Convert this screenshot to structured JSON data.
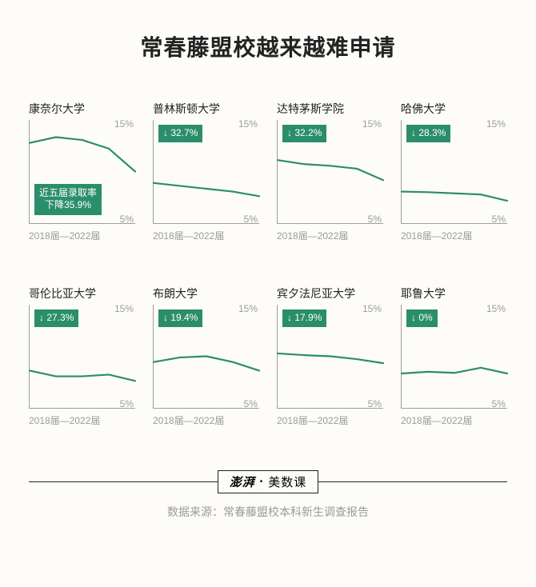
{
  "title": "常春藤盟校越来越难申请",
  "y_axis": {
    "top_label": "15%",
    "bottom_label": "5%",
    "min": 0,
    "max": 18
  },
  "x_axis_label": "2018届—2022届",
  "line_color": "#2b8e6b",
  "badge_bg": "#2b8e6b",
  "badge_fg": "#ffffff",
  "background": "#fdfcf9",
  "axis_color": "#9f9f99",
  "label_color": "#9b9b94",
  "charts": [
    {
      "name": "康奈尔大学",
      "badge_lines": [
        "近五届录取率",
        "下降35.9%"
      ],
      "badge_pos": "bottom",
      "values": [
        14.0,
        15.0,
        14.5,
        13.0,
        9.0
      ]
    },
    {
      "name": "普林斯顿大学",
      "badge_lines": [
        "↓ 32.7%"
      ],
      "badge_pos": "top",
      "values": [
        7.0,
        6.5,
        6.0,
        5.5,
        4.7
      ]
    },
    {
      "name": "达特茅斯学院",
      "badge_lines": [
        "↓ 32.2%"
      ],
      "badge_pos": "top",
      "values": [
        11.0,
        10.3,
        10.0,
        9.5,
        7.5
      ]
    },
    {
      "name": "哈佛大学",
      "badge_lines": [
        "↓ 28.3%"
      ],
      "badge_pos": "top",
      "values": [
        5.5,
        5.4,
        5.2,
        5.0,
        3.9
      ]
    },
    {
      "name": "哥伦比亚大学",
      "badge_lines": [
        "↓ 27.3%"
      ],
      "badge_pos": "top",
      "values": [
        6.5,
        5.5,
        5.5,
        5.8,
        4.7
      ]
    },
    {
      "name": "布朗大学",
      "badge_lines": [
        "↓ 19.4%"
      ],
      "badge_pos": "top",
      "values": [
        8.0,
        8.8,
        9.0,
        8.0,
        6.5
      ]
    },
    {
      "name": "宾夕法尼亚大学",
      "badge_lines": [
        "↓ 17.9%"
      ],
      "badge_pos": "top",
      "values": [
        9.5,
        9.2,
        9.0,
        8.5,
        7.8
      ]
    },
    {
      "name": "耶鲁大学",
      "badge_lines": [
        "↓ 0%"
      ],
      "badge_pos": "top",
      "values": [
        6.0,
        6.3,
        6.1,
        7.0,
        6.0
      ]
    }
  ],
  "brand": {
    "logo": "澎湃",
    "sep": "•",
    "text": "美数课"
  },
  "source": "数据来源：常春藤盟校本科新生调查报告"
}
